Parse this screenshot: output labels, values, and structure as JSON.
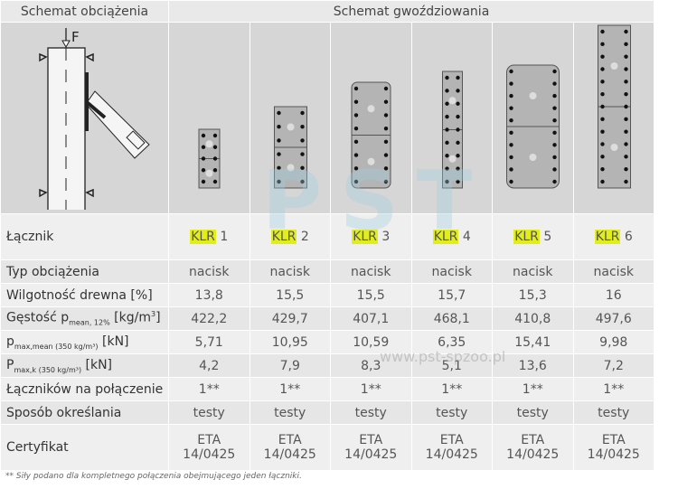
{
  "header": {
    "load_scheme": "Schemat obciążenia",
    "nailing_scheme": "Schemat gwoździowania",
    "force_label": "F"
  },
  "connectors": [
    {
      "prefix": "KLR",
      "num": "1",
      "load": "nacisk",
      "moisture": "13,8",
      "density": "422,2",
      "pmean": "5,71",
      "pk": "4,2",
      "count": "1**",
      "method": "testy",
      "cert1": "ETA",
      "cert2": "14/0425"
    },
    {
      "prefix": "KLR",
      "num": "2",
      "load": "nacisk",
      "moisture": "15,5",
      "density": "429,7",
      "pmean": "10,95",
      "pk": "7,9",
      "count": "1**",
      "method": "testy",
      "cert1": "ETA",
      "cert2": "14/0425"
    },
    {
      "prefix": "KLR",
      "num": "3",
      "load": "nacisk",
      "moisture": "15,5",
      "density": "407,1",
      "pmean": "10,59",
      "pk": "8,3",
      "count": "1**",
      "method": "testy",
      "cert1": "ETA",
      "cert2": "14/0425"
    },
    {
      "prefix": "KLR",
      "num": "4",
      "load": "nacisk",
      "moisture": "15,7",
      "density": "468,1",
      "pmean": "6,35",
      "pk": "5,1",
      "count": "1**",
      "method": "testy",
      "cert1": "ETA",
      "cert2": "14/0425"
    },
    {
      "prefix": "KLR",
      "num": "5",
      "load": "nacisk",
      "moisture": "15,3",
      "density": "410,8",
      "pmean": "15,41",
      "pk": "13,6",
      "count": "1**",
      "method": "testy",
      "cert1": "ETA",
      "cert2": "14/0425"
    },
    {
      "prefix": "KLR",
      "num": "6",
      "load": "nacisk",
      "moisture": "16",
      "density": "497,6",
      "pmean": "9,98",
      "pk": "7,2",
      "count": "1**",
      "method": "testy",
      "cert1": "ETA",
      "cert2": "14/0425"
    }
  ],
  "rows": {
    "connector": "Łącznik",
    "load": "Typ obciążenia",
    "moisture": "Wilgotność drewna [%]",
    "density_a": "Gęstość p",
    "density_sub": "mean, 12%",
    "density_b": " [kg/m",
    "density_sup": "3",
    "density_c": "]",
    "pmean_a": "p",
    "pmean_sub": "max,mean (350 kg/m³)",
    "pmean_b": " [kN]",
    "pk_a": "P",
    "pk_sub": "max,k (350 kg/m³)",
    "pk_b": " [kN]",
    "count": "Łączników na połączenie",
    "method": "Sposób określania",
    "cert": "Certyfikat"
  },
  "footnote": "** Siły podano dla kompletnego połączenia obejmującego jeden łączniki.",
  "watermark": {
    "logo": "PST",
    "url": "www.pst-spzoo.pl"
  }
}
